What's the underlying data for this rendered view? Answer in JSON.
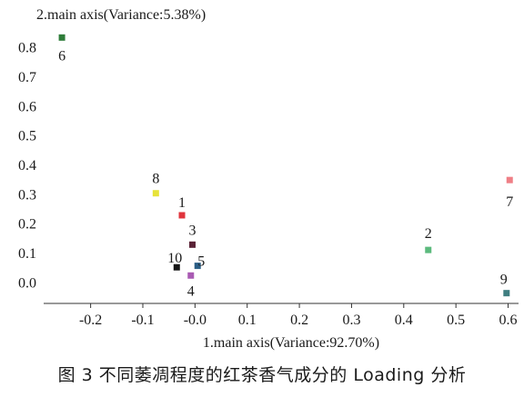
{
  "chart_data": {
    "type": "scatter",
    "xlabel": "1.main axis(Variance:92.70%)",
    "ylabel": "2.main axis(Variance:5.38%)",
    "xlim": [
      -0.29,
      0.62
    ],
    "ylim": [
      -0.07,
      0.87
    ],
    "xticks": [
      "-0.2",
      "-0.1",
      "-0.0",
      "0.1",
      "0.2",
      "0.3",
      "0.4",
      "0.5",
      "0.6"
    ],
    "yticks": [
      "0.0",
      "0.1",
      "0.2",
      "0.3",
      "0.4",
      "0.5",
      "0.6",
      "0.7",
      "0.8"
    ],
    "grid": false,
    "points": [
      {
        "label": "1",
        "x": -0.025,
        "y": 0.23,
        "color": "#e0343c"
      },
      {
        "label": "2",
        "x": 0.447,
        "y": 0.112,
        "color": "#5cba7d"
      },
      {
        "label": "3",
        "x": -0.005,
        "y": 0.13,
        "color": "#5a2236"
      },
      {
        "label": "4",
        "x": -0.008,
        "y": 0.025,
        "color": "#a95bb3"
      },
      {
        "label": "5",
        "x": 0.005,
        "y": 0.058,
        "color": "#2c5f86"
      },
      {
        "label": "6",
        "x": -0.255,
        "y": 0.835,
        "color": "#2f7d3a"
      },
      {
        "label": "7",
        "x": 0.603,
        "y": 0.35,
        "color": "#ef7f86"
      },
      {
        "label": "8",
        "x": -0.075,
        "y": 0.305,
        "color": "#e7e33a"
      },
      {
        "label": "9",
        "x": 0.597,
        "y": -0.035,
        "color": "#3f7e80"
      },
      {
        "label": "10",
        "x": -0.035,
        "y": 0.053,
        "color": "#151515"
      }
    ]
  },
  "caption": "图 3   不同萎凋程度的红茶香气成分的 Loading 分析"
}
